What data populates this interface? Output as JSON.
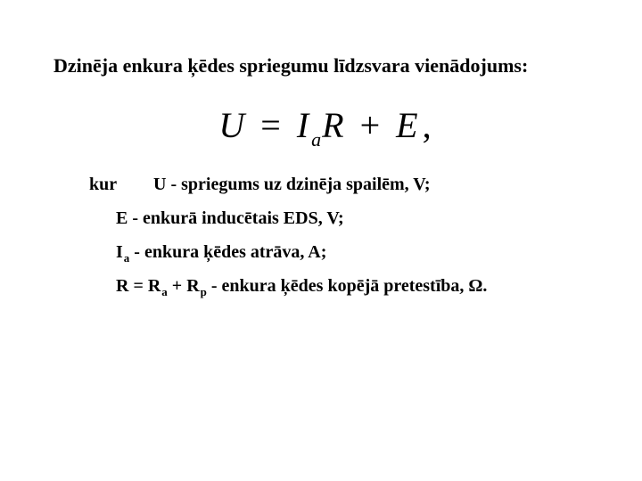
{
  "title_fontsize": 22,
  "equation_fontsize": 40,
  "body_fontsize": 20,
  "text_color": "#000000",
  "background_color": "#ffffff",
  "font_family": "Times New Roman",
  "title": "Dzinēja enkura ķēdes spriegumu līdzsvara vienādojums:",
  "equation": {
    "U": "U",
    "eq": "=",
    "I": "I",
    "I_sub": "a",
    "R": "R",
    "plus": "+",
    "E": "E",
    "comma": ","
  },
  "defs": {
    "kur": "kur",
    "line1": "U - spriegums uz dzinēja spailēm, V;",
    "line2": "E - enkurā inducētais EDS, V;",
    "line3_sym": "I",
    "line3_sub": "a",
    "line3_rest": " - enkura ķēdes atrāva, A;",
    "line4_R": "R = R",
    "line4_sub_a": "a",
    "line4_plus": " + R",
    "line4_sub_p": "p",
    "line4_rest": " - enkura ķēdes kopējā pretestība, ",
    "line4_omega": "Ω",
    "line4_period": "."
  }
}
